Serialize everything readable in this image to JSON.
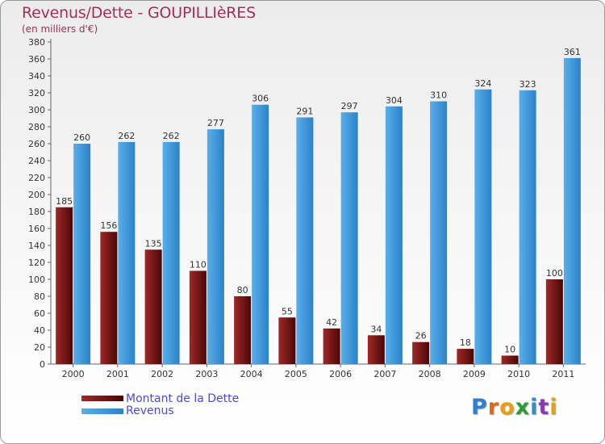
{
  "colors": {
    "title": "#a0305a",
    "dette_light": "#a02828",
    "dette_dark": "#4a0606",
    "revenus_light": "#5aaeea",
    "revenus_dark": "#2a82c8",
    "legend_text": "#4a4ad8"
  },
  "logo": {
    "letters": [
      "P",
      "r",
      "o",
      "x",
      "i",
      "t",
      "i"
    ],
    "colors": [
      "#2f7fd0",
      "#e06a10",
      "#e9a010",
      "#2f9a35",
      "#2a90d0",
      "#8a3ab0",
      "#e3a010"
    ]
  },
  "chart_data": {
    "type": "bar",
    "title": "Revenus/Dette - GOUPILLIèRES",
    "subtitle": "(en milliers d'€)",
    "categories": [
      "2000",
      "2001",
      "2002",
      "2003",
      "2004",
      "2005",
      "2006",
      "2007",
      "2008",
      "2009",
      "2010",
      "2011"
    ],
    "series": [
      {
        "name": "Montant de la Dette",
        "values": [
          185,
          156,
          135,
          110,
          80,
          55,
          42,
          34,
          26,
          18,
          10,
          100
        ]
      },
      {
        "name": "Revenus",
        "values": [
          260,
          262,
          262,
          277,
          306,
          291,
          297,
          304,
          310,
          324,
          323,
          361
        ]
      }
    ],
    "ylim": [
      0,
      380
    ],
    "ytick_step": 20,
    "grid": false,
    "legend_position": "bottom-left"
  }
}
